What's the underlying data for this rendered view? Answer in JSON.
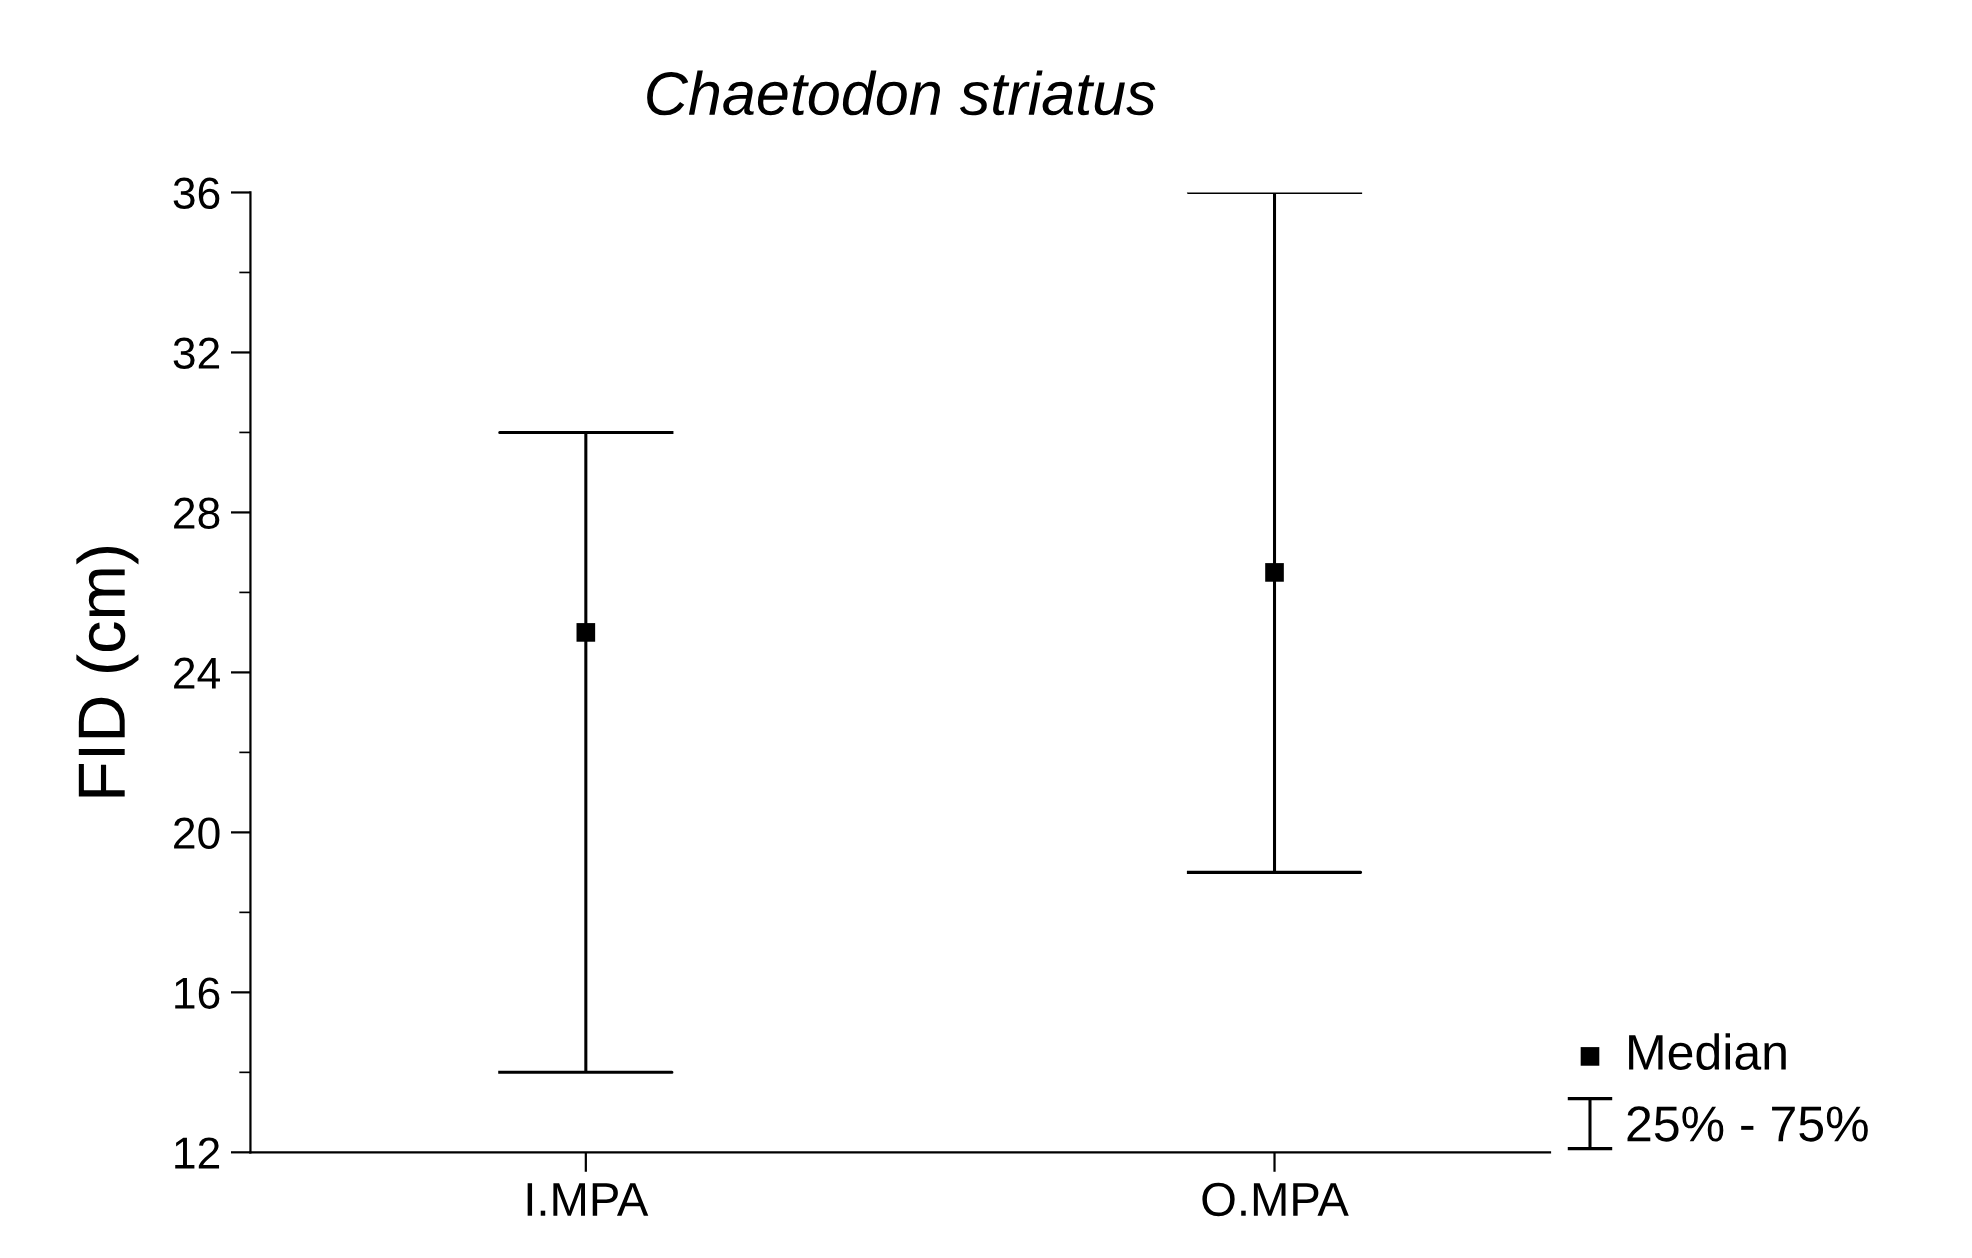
{
  "chart_data": {
    "type": "scatter",
    "title": "Chaetodon striatus",
    "ylabel": "FID (cm)",
    "categories": [
      "I.MPA",
      "O.MPA"
    ],
    "series": [
      {
        "name": "Median",
        "color": "#000000",
        "marker": "square",
        "values": [
          25,
          26.5
        ],
        "errors": [
          [
            14,
            30
          ],
          [
            19,
            36
          ]
        ]
      }
    ],
    "annotations": [
      "25% - 75%"
    ],
    "ylim": [
      12,
      36
    ],
    "yticks": [
      12,
      {
        "value": 14,
        "label": null
      },
      16,
      {
        "value": 18,
        "label": null
      },
      20,
      {
        "value": 22,
        "label": null
      },
      24,
      {
        "value": 26,
        "label": null
      },
      28,
      {
        "value": 30,
        "label": null
      },
      32,
      {
        "value": 34,
        "label": null
      },
      36
    ],
    "grid": false,
    "legend": "bottom right"
  }
}
